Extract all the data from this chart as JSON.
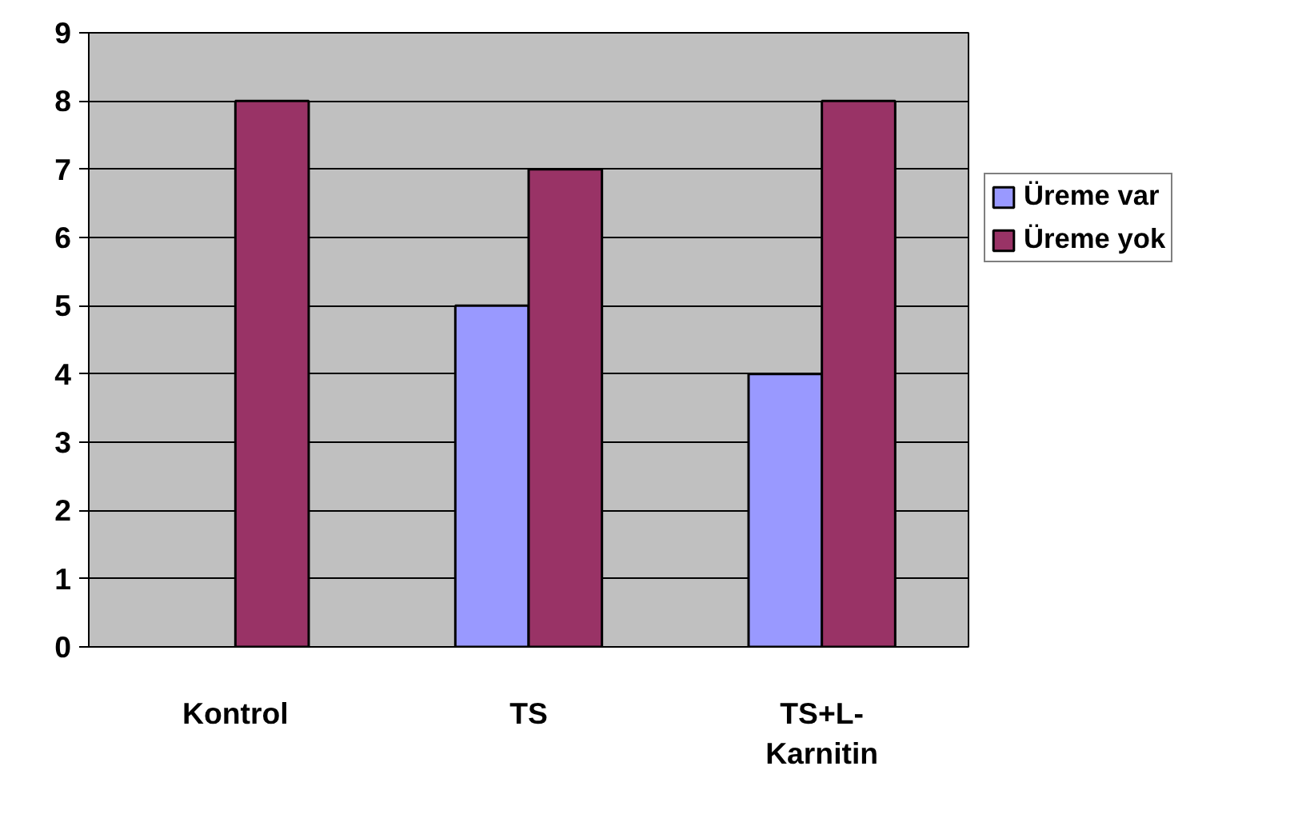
{
  "chart_data": {
    "type": "bar",
    "categories": [
      "Kontrol",
      "TS",
      "TS+L-Karnitin"
    ],
    "series": [
      {
        "name": "Üreme var",
        "color": "#9999ff",
        "values": [
          null,
          5,
          4
        ]
      },
      {
        "name": "Üreme yok",
        "color": "#993366",
        "values": [
          8,
          7,
          8
        ]
      }
    ],
    "ylim": [
      0,
      9
    ],
    "yticks": [
      0,
      1,
      2,
      3,
      4,
      5,
      6,
      7,
      8,
      9
    ],
    "grid": "y",
    "legend": "right"
  }
}
